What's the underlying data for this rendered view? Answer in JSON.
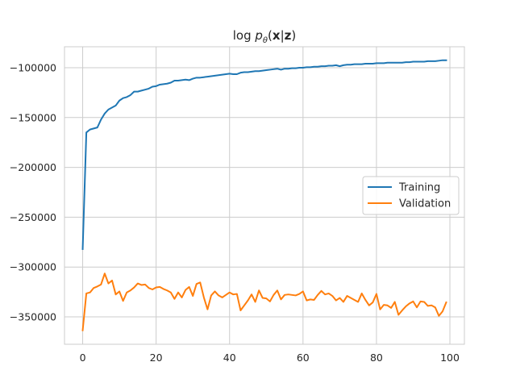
{
  "chart_data": {
    "type": "line",
    "title": {
      "prefix": "log ",
      "p": "p",
      "theta": "θ",
      "open": "(",
      "x": "x",
      "bar": "|",
      "z": "z",
      "close": ")"
    },
    "xlabel": "",
    "ylabel": "",
    "xlim": [
      -4.95,
      103.95
    ],
    "ylim": [
      -377500,
      -79000
    ],
    "xticks": [
      0,
      20,
      40,
      60,
      80,
      100
    ],
    "xtick_labels": [
      "0",
      "20",
      "40",
      "60",
      "80",
      "100"
    ],
    "yticks": [
      -100000,
      -150000,
      -200000,
      -250000,
      -300000,
      -350000
    ],
    "ytick_labels": [
      "−100000",
      "−150000",
      "−200000",
      "−250000",
      "−300000",
      "−350000"
    ],
    "grid": true,
    "legend_position": "center-right",
    "series": [
      {
        "name": "Training",
        "color": "#1f77b4",
        "x": [
          0,
          1,
          2,
          3,
          4,
          5,
          6,
          7,
          8,
          9,
          10,
          11,
          12,
          13,
          14,
          15,
          16,
          17,
          18,
          19,
          20,
          21,
          22,
          23,
          24,
          25,
          26,
          27,
          28,
          29,
          30,
          31,
          32,
          33,
          34,
          35,
          36,
          37,
          38,
          39,
          40,
          41,
          42,
          43,
          44,
          45,
          46,
          47,
          48,
          49,
          50,
          51,
          52,
          53,
          54,
          55,
          56,
          57,
          58,
          59,
          60,
          61,
          62,
          63,
          64,
          65,
          66,
          67,
          68,
          69,
          70,
          71,
          72,
          73,
          74,
          75,
          76,
          77,
          78,
          79,
          80,
          81,
          82,
          83,
          84,
          85,
          86,
          87,
          88,
          89,
          90,
          91,
          92,
          93,
          94,
          95,
          96,
          97,
          98,
          99
        ],
        "values": [
          -282000,
          -165000,
          -162000,
          -161000,
          -160000,
          -152000,
          -146000,
          -142000,
          -140000,
          -138000,
          -133000,
          -130500,
          -129500,
          -127500,
          -124000,
          -124000,
          -123000,
          -122000,
          -121000,
          -119000,
          -118500,
          -117000,
          -116500,
          -116000,
          -115000,
          -113000,
          -113000,
          -112500,
          -112000,
          -112500,
          -111000,
          -110000,
          -110000,
          -109500,
          -109000,
          -108500,
          -108000,
          -107500,
          -107000,
          -106500,
          -106000,
          -106500,
          -106500,
          -105000,
          -104500,
          -104500,
          -104000,
          -103500,
          -103500,
          -103000,
          -102500,
          -102000,
          -101500,
          -101000,
          -102000,
          -101000,
          -101000,
          -100500,
          -100500,
          -100000,
          -100000,
          -99500,
          -99500,
          -99000,
          -99000,
          -98500,
          -98500,
          -98000,
          -98000,
          -97500,
          -98500,
          -97500,
          -97000,
          -97000,
          -96500,
          -96500,
          -96500,
          -96000,
          -96000,
          -96000,
          -95500,
          -95500,
          -95500,
          -95000,
          -95000,
          -95000,
          -95000,
          -95000,
          -94500,
          -94500,
          -94000,
          -94000,
          -94000,
          -94000,
          -93500,
          -93500,
          -93500,
          -93000,
          -92500,
          -92500
        ]
      },
      {
        "name": "Validation",
        "color": "#ff7f0e",
        "x": [
          0,
          1,
          2,
          3,
          4,
          5,
          6,
          7,
          8,
          9,
          10,
          11,
          12,
          13,
          14,
          15,
          16,
          17,
          18,
          19,
          20,
          21,
          22,
          23,
          24,
          25,
          26,
          27,
          28,
          29,
          30,
          31,
          32,
          33,
          34,
          35,
          36,
          37,
          38,
          39,
          40,
          41,
          42,
          43,
          44,
          45,
          46,
          47,
          48,
          49,
          50,
          51,
          52,
          53,
          54,
          55,
          56,
          57,
          58,
          59,
          60,
          61,
          62,
          63,
          64,
          65,
          66,
          67,
          68,
          69,
          70,
          71,
          72,
          73,
          74,
          75,
          76,
          77,
          78,
          79,
          80,
          81,
          82,
          83,
          84,
          85,
          86,
          87,
          88,
          89,
          90,
          91,
          92,
          93,
          94,
          95,
          96,
          97,
          98,
          99
        ],
        "values": [
          -363500,
          -326500,
          -325500,
          -321000,
          -319500,
          -317500,
          -306500,
          -316500,
          -313500,
          -327500,
          -324500,
          -334000,
          -325500,
          -323500,
          -320500,
          -316500,
          -318000,
          -317500,
          -321000,
          -322500,
          -320500,
          -320000,
          -322000,
          -323500,
          -325500,
          -332000,
          -325500,
          -330500,
          -323000,
          -320000,
          -329000,
          -317000,
          -315500,
          -330500,
          -342500,
          -328500,
          -324500,
          -328500,
          -330500,
          -328000,
          -325500,
          -327500,
          -327000,
          -343500,
          -338500,
          -333500,
          -327500,
          -335000,
          -323500,
          -331000,
          -331500,
          -334500,
          -328000,
          -323500,
          -332500,
          -328000,
          -327500,
          -328000,
          -328500,
          -327000,
          -324500,
          -333500,
          -332500,
          -333000,
          -328000,
          -324000,
          -327500,
          -326500,
          -329000,
          -333500,
          -331000,
          -335000,
          -329000,
          -331000,
          -333000,
          -335000,
          -326500,
          -333000,
          -338500,
          -335500,
          -327000,
          -342500,
          -338000,
          -338500,
          -341000,
          -335000,
          -348000,
          -343500,
          -339500,
          -336500,
          -334500,
          -340500,
          -334500,
          -335000,
          -339000,
          -338500,
          -340500,
          -349000,
          -344500,
          -335500
        ]
      }
    ]
  }
}
